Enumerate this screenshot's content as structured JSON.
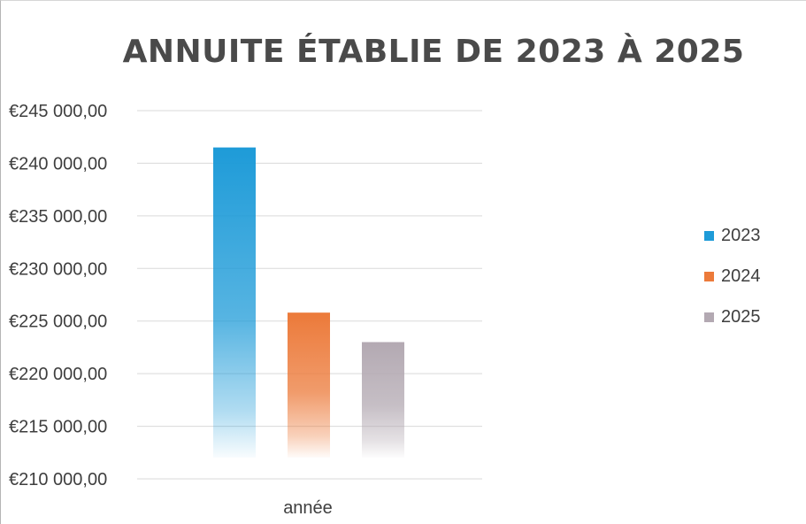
{
  "chart_data": {
    "type": "bar",
    "title": "ANNUITE ÉTABLIE DE 2023 À 2025",
    "categories": [
      "année"
    ],
    "series": [
      {
        "name": "2023",
        "values": [
          241500
        ],
        "color": "#1e9bd8"
      },
      {
        "name": "2024",
        "values": [
          225800
        ],
        "color": "#ec7a3a"
      },
      {
        "name": "2025",
        "values": [
          223000
        ],
        "color": "#b3a9b2"
      }
    ],
    "ylim": [
      210000,
      245000
    ],
    "yticks": [
      245000,
      240000,
      235000,
      230000,
      225000,
      220000,
      215000,
      210000
    ],
    "ytick_labels": [
      "€245 000,00",
      "€240 000,00",
      "€235 000,00",
      "€230 000,00",
      "€225 000,00",
      "€220 000,00",
      "€215 000,00",
      "€210 000,00"
    ],
    "xlabel": "",
    "ylabel": "",
    "grid": true,
    "legend_position": "right"
  }
}
